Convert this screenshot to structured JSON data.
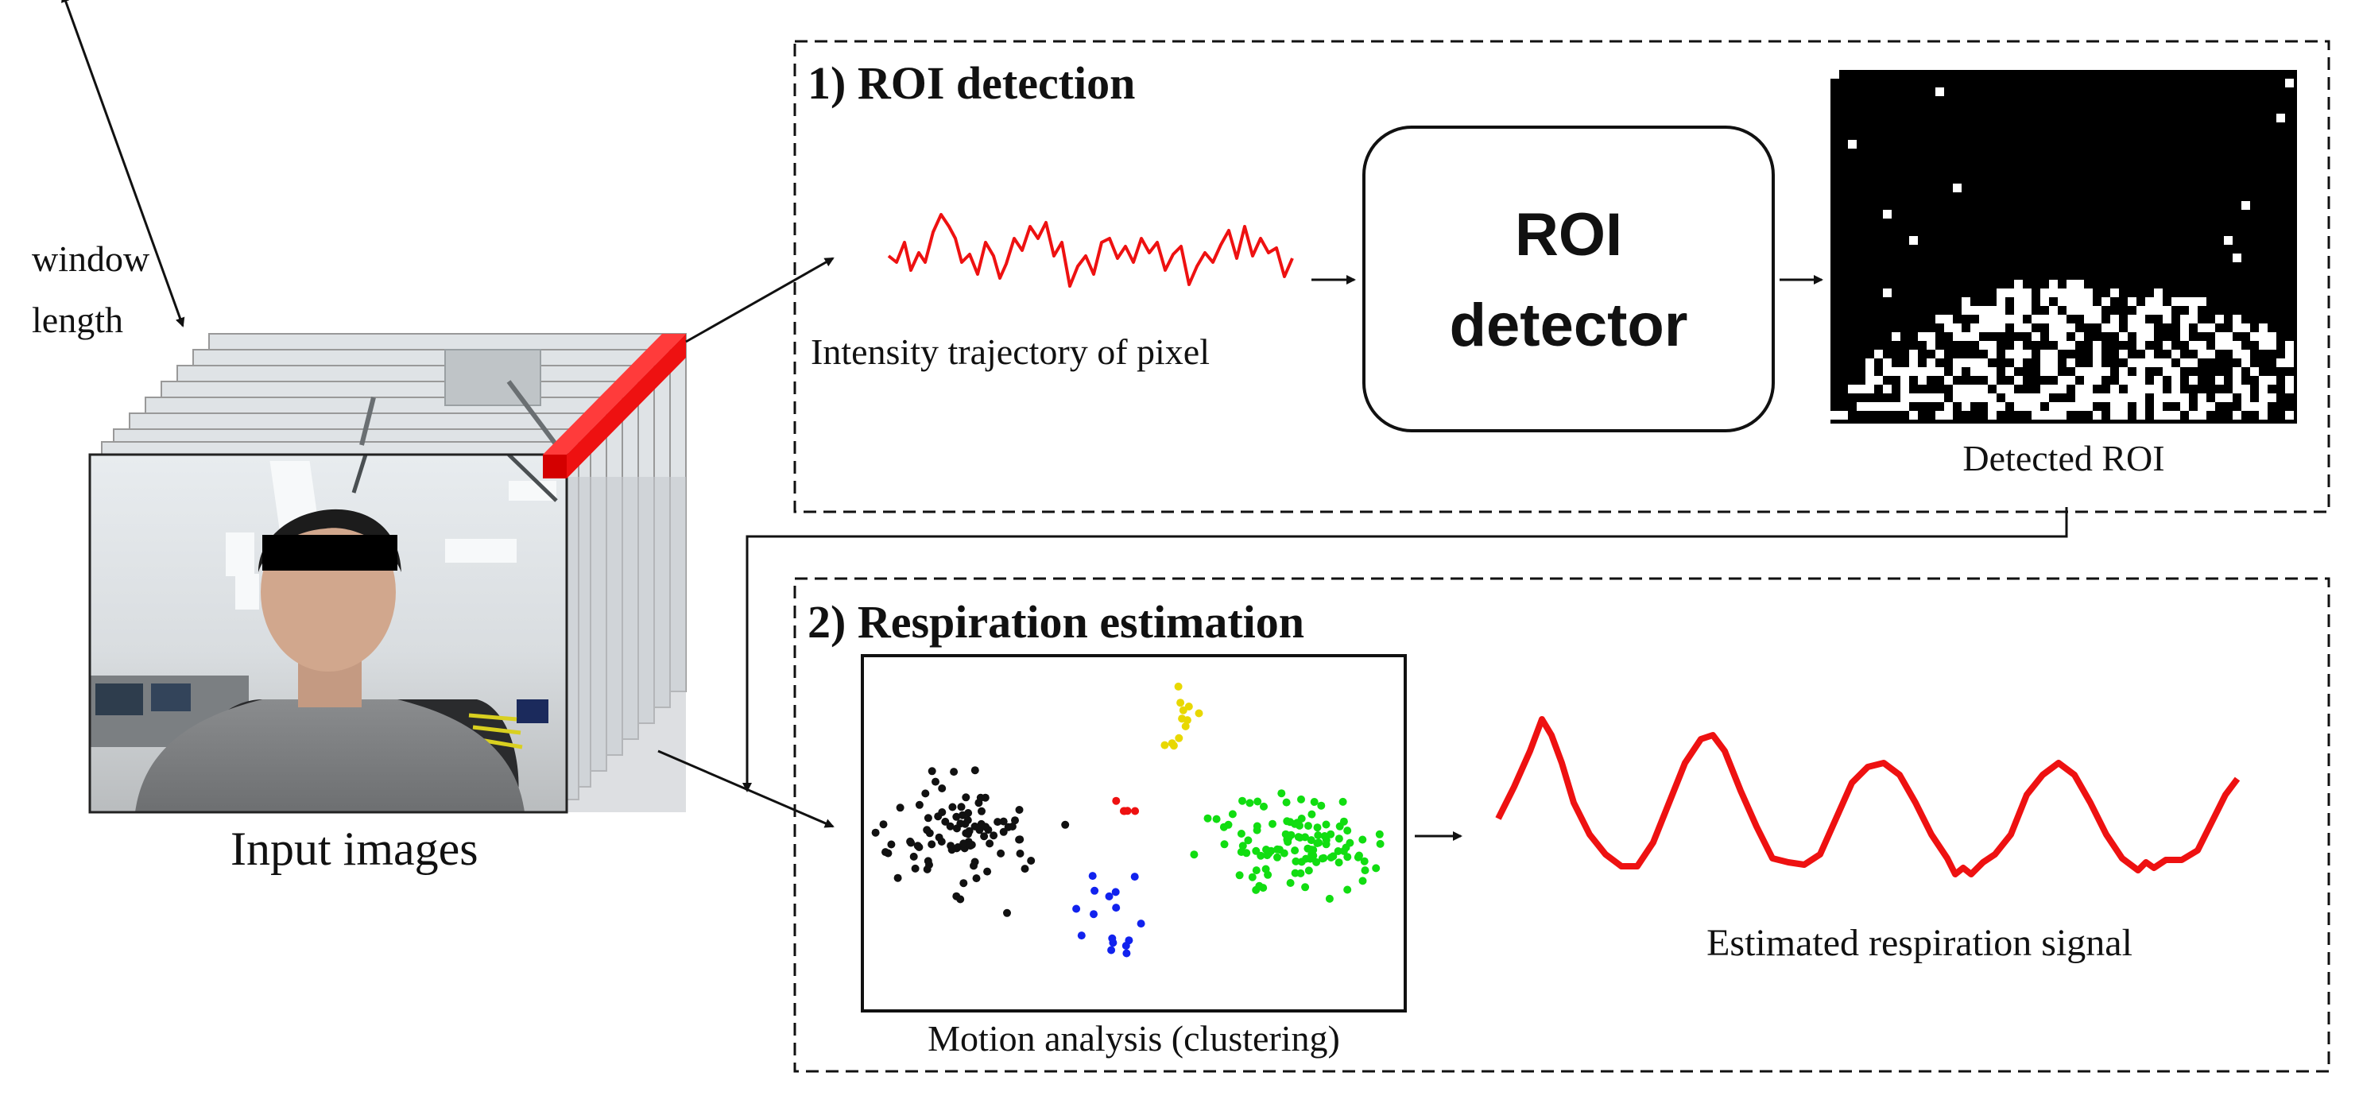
{
  "input": {
    "window_label_line1": "window",
    "window_label_line2": "length",
    "caption": "Input images"
  },
  "roi_section": {
    "title": "1) ROI detection",
    "trajectory_caption": "Intensity trajectory of pixel",
    "detector_line1": "ROI",
    "detector_line2": "detector",
    "detected_caption": "Detected ROI"
  },
  "resp_section": {
    "title": "2) Respiration estimation",
    "motion_caption": "Motion analysis (clustering)",
    "signal_caption": "Estimated respiration signal"
  },
  "colors": {
    "trajectory": "#ee1111",
    "signal": "#ee1111",
    "cluster_black": "#111111",
    "cluster_yellow": "#e8d800",
    "cluster_red": "#ee1111",
    "cluster_blue": "#1122ee",
    "cluster_green": "#11dd11",
    "highlight_bar": "#ee1111"
  }
}
